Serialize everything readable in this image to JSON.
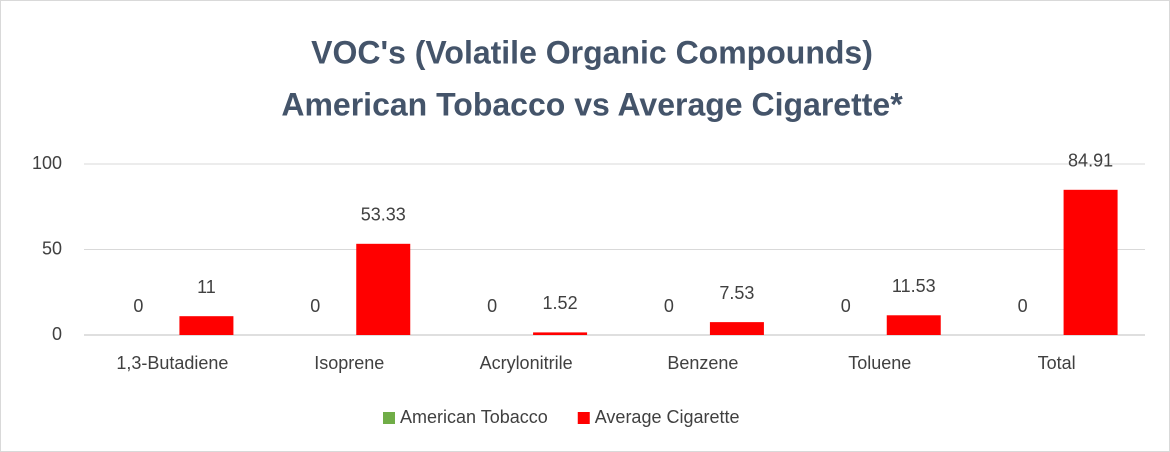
{
  "chart_data": {
    "type": "bar",
    "title": [
      "VOC's (Volatile Organic Compounds)",
      "American Tobacco vs Average Cigarette*"
    ],
    "categories": [
      "1,3-Butadiene",
      "Isoprene",
      "Acrylonitrile",
      "Benzene",
      "Toluene",
      "Total"
    ],
    "series": [
      {
        "name": "American Tobacco",
        "color": "#70ad47",
        "values": [
          0,
          0,
          0,
          0,
          0,
          0
        ]
      },
      {
        "name": "Average Cigarette",
        "color": "#ff0000",
        "values": [
          11,
          53.33,
          1.52,
          7.53,
          11.53,
          84.91
        ]
      }
    ],
    "ylim": [
      0,
      100
    ],
    "yticks": [
      0,
      50,
      100
    ],
    "grid": true,
    "legend": "bottom"
  }
}
